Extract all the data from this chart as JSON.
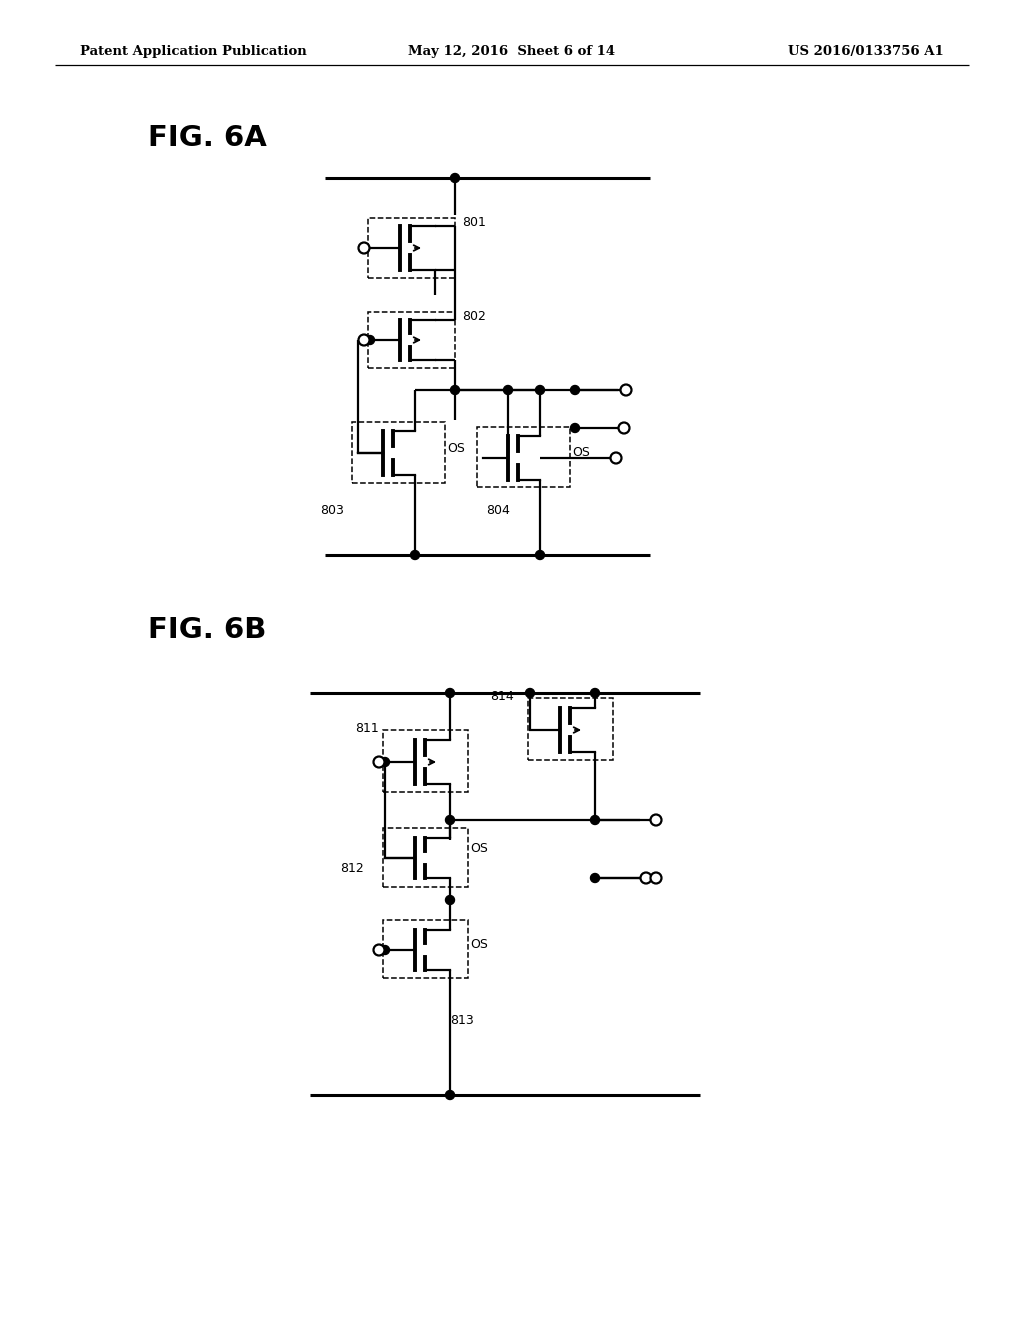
{
  "header_left": "Patent Application Publication",
  "header_center": "May 12, 2016  Sheet 6 of 14",
  "header_right": "US 2016/0133756 A1",
  "fig6a_label": "FIG. 6A",
  "fig6b_label": "FIG. 6B",
  "label_801": "801",
  "label_802": "802",
  "label_803": "803",
  "label_804": "804",
  "label_811": "811",
  "label_812": "812",
  "label_813": "813",
  "label_814": "814",
  "label_OS": "OS",
  "bg": "#ffffff"
}
